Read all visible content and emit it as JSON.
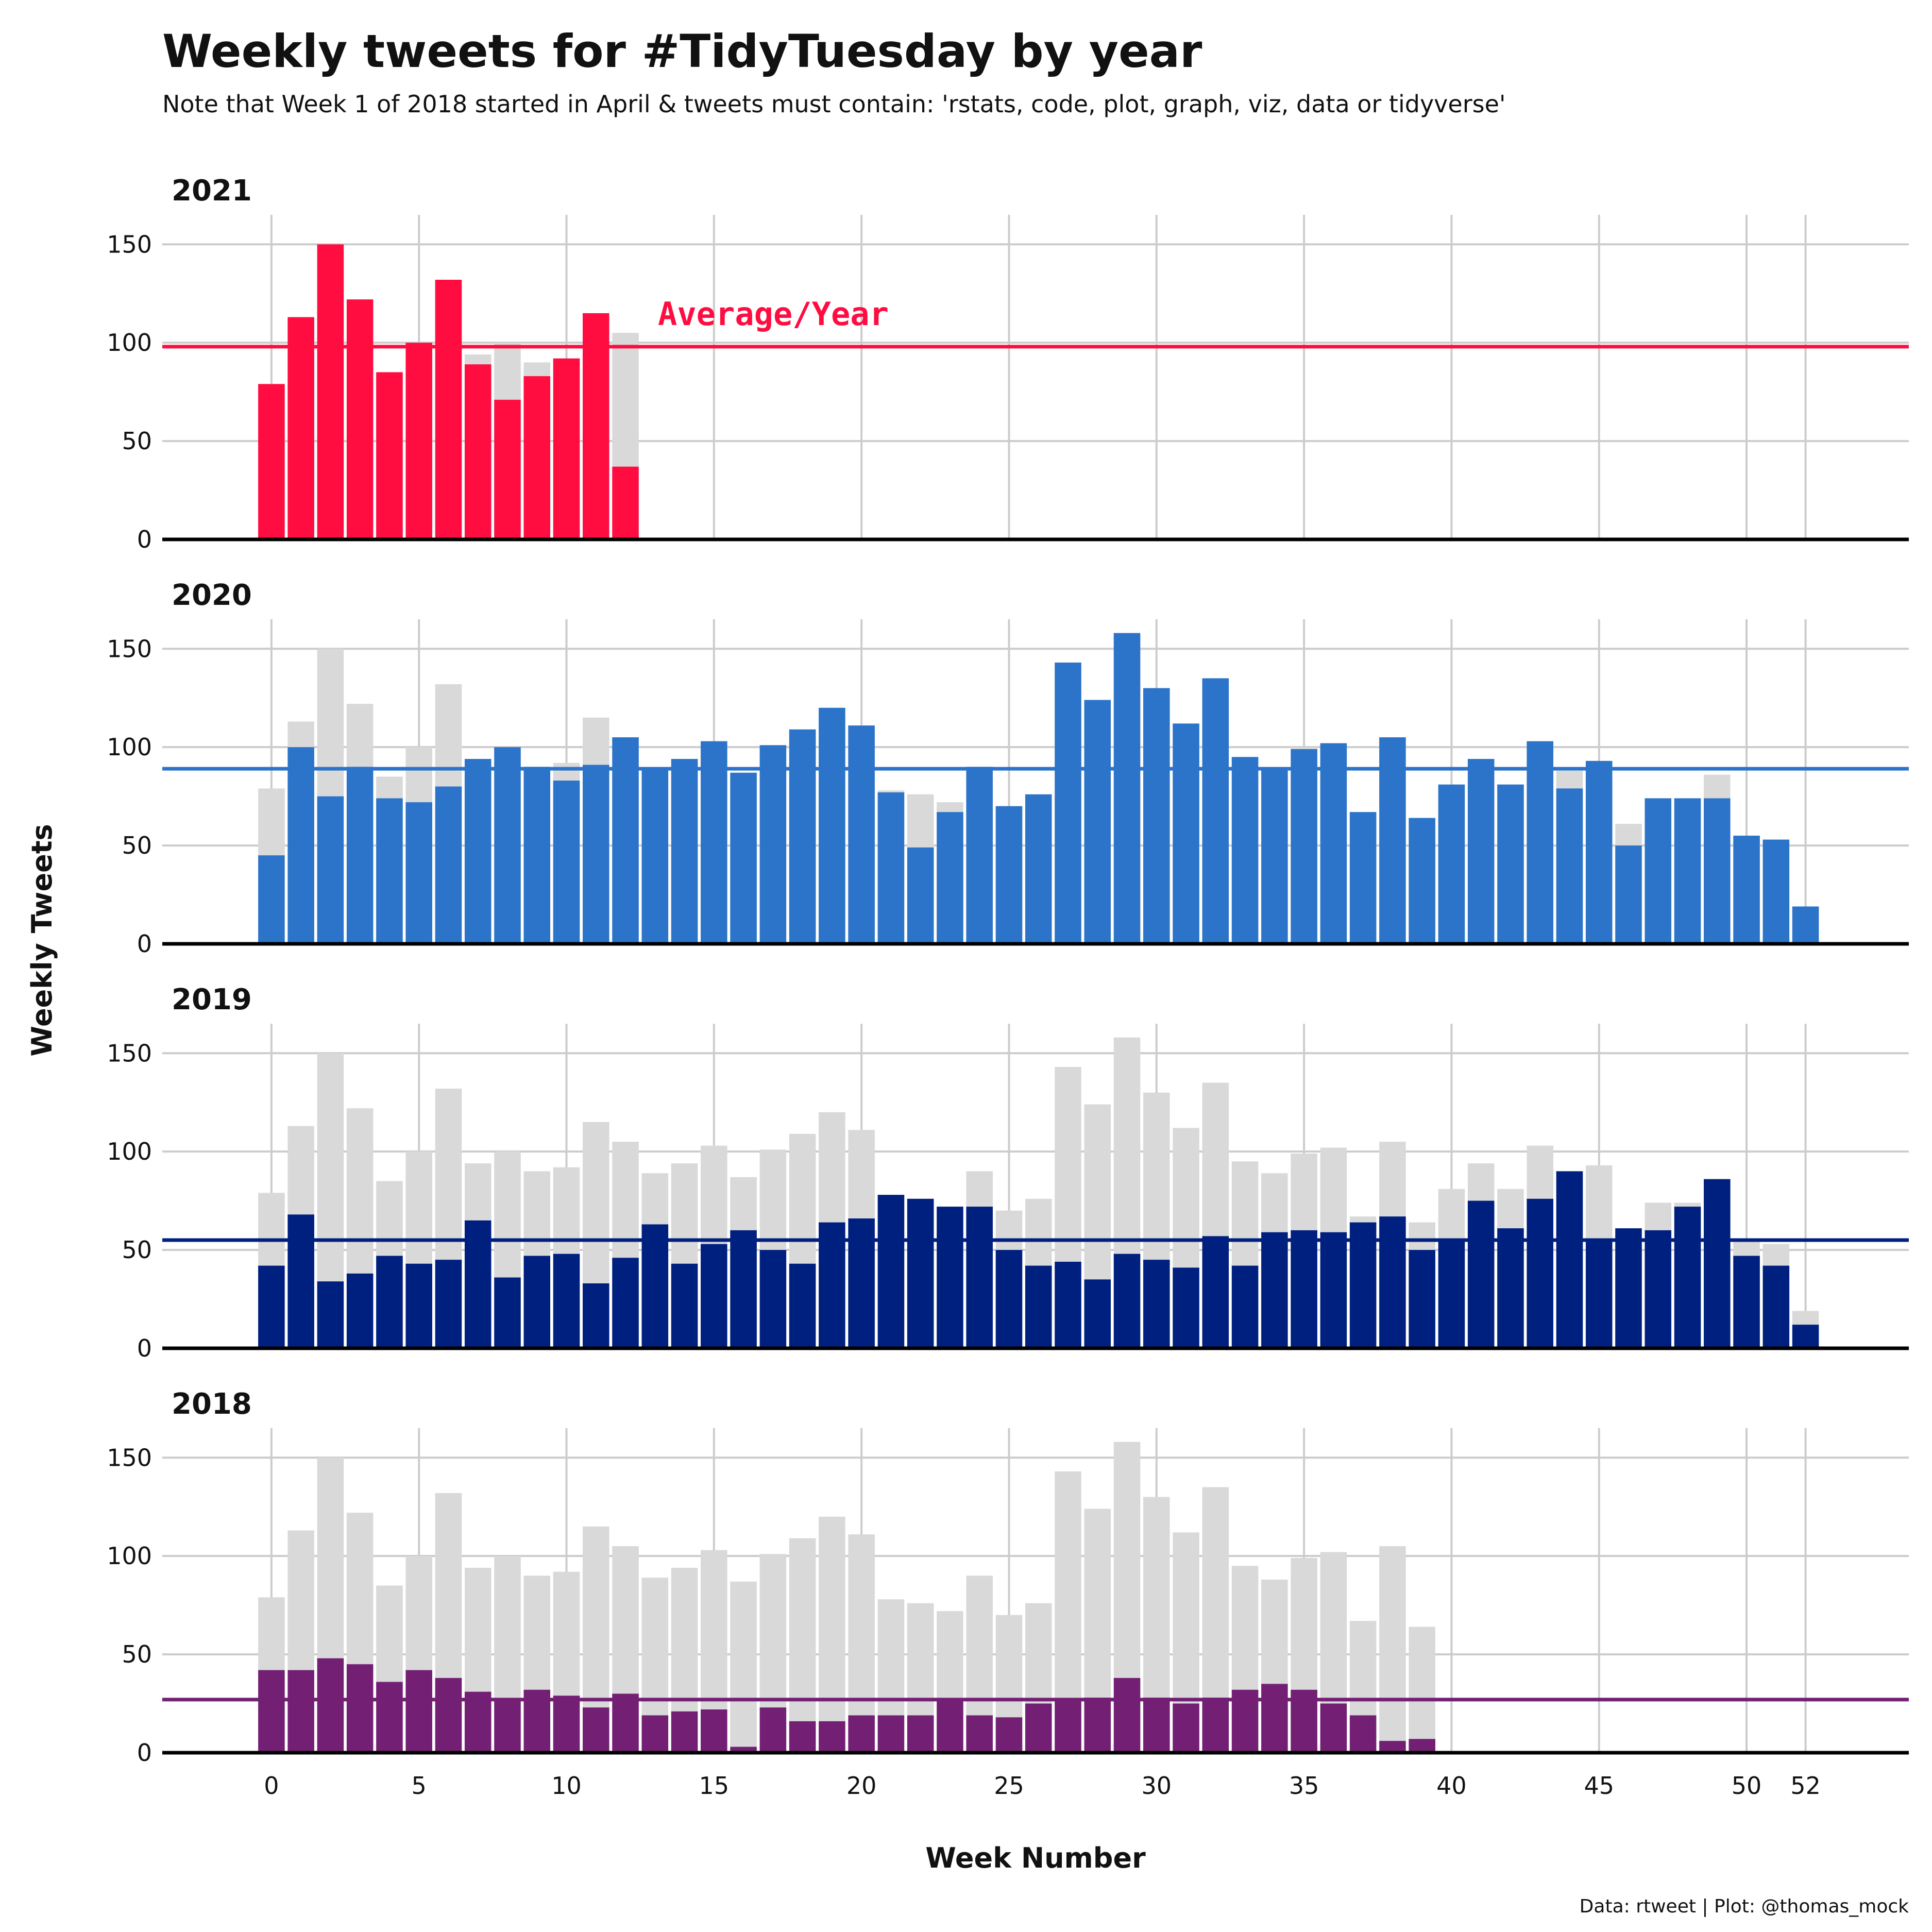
{
  "title": "Weekly tweets for #TidyTuesday by year",
  "subtitle": "Note that Week 1 of 2018 started in April & tweets must contain: 'rstats, code, plot, graph, viz, data or tidyverse'",
  "caption": "Data: rtweet | Plot: @thomas_mock",
  "annotation": {
    "text": "Average/Year",
    "color": "#ff0d41"
  },
  "chart_data": {
    "type": "bar",
    "xlabel": "Week Number",
    "ylabel": "Weekly Tweets",
    "x_ticks": [
      0,
      5,
      10,
      15,
      20,
      25,
      30,
      35,
      40,
      45,
      50,
      52
    ],
    "y_ticks": [
      0,
      50,
      100,
      150
    ],
    "ylim": [
      0,
      165
    ],
    "xlim": [
      -3.7,
      55.5
    ],
    "grid": true,
    "background_bar_color": "#d9d9d9",
    "panels": [
      {
        "name": "2021",
        "color": "#ff0d41",
        "average": 98,
        "values": [
          79,
          113,
          150,
          122,
          85,
          100,
          132,
          89,
          71,
          83,
          92,
          115,
          37
        ],
        "background_values": [
          79,
          113,
          150,
          122,
          85,
          100,
          132,
          94,
          100,
          90,
          92,
          115,
          105
        ]
      },
      {
        "name": "2020",
        "color": "#2c74c9",
        "average": 89,
        "values": [
          45,
          100,
          75,
          90,
          74,
          72,
          80,
          94,
          100,
          90,
          83,
          91,
          105,
          89,
          94,
          103,
          87,
          101,
          109,
          120,
          111,
          77,
          49,
          67,
          90,
          70,
          76,
          143,
          124,
          158,
          130,
          112,
          135,
          95,
          89,
          99,
          102,
          67,
          105,
          64,
          81,
          94,
          81,
          103,
          79,
          93,
          50,
          74,
          74,
          74,
          55,
          53,
          19
        ],
        "background_values": [
          79,
          113,
          150,
          122,
          85,
          100,
          132,
          94,
          100,
          90,
          92,
          115,
          105,
          89,
          94,
          103,
          87,
          101,
          109,
          120,
          111,
          78,
          76,
          72,
          90,
          70,
          76,
          143,
          124,
          158,
          130,
          112,
          135,
          95,
          89,
          100,
          102,
          67,
          105,
          64,
          81,
          94,
          81,
          103,
          88,
          93,
          61,
          74,
          74,
          86,
          55,
          53,
          19
        ]
      },
      {
        "name": "2019",
        "color": "#002080",
        "average": 55,
        "values": [
          42,
          68,
          34,
          38,
          47,
          43,
          45,
          65,
          36,
          47,
          48,
          33,
          46,
          63,
          43,
          53,
          60,
          50,
          43,
          64,
          66,
          78,
          76,
          72,
          72,
          50,
          42,
          44,
          35,
          48,
          45,
          41,
          57,
          42,
          59,
          60,
          59,
          64,
          67,
          50,
          55,
          75,
          61,
          76,
          90,
          55,
          61,
          60,
          72,
          86,
          47,
          42,
          12
        ],
        "background_values": [
          79,
          113,
          150,
          122,
          85,
          100,
          132,
          94,
          100,
          90,
          92,
          115,
          105,
          89,
          94,
          103,
          87,
          101,
          109,
          120,
          111,
          78,
          76,
          72,
          90,
          70,
          76,
          143,
          124,
          158,
          130,
          112,
          135,
          95,
          89,
          99,
          102,
          67,
          105,
          64,
          81,
          94,
          81,
          103,
          90,
          93,
          61,
          74,
          74,
          86,
          55,
          53,
          19
        ]
      },
      {
        "name": "2018",
        "color": "#732074",
        "average": 27,
        "values": [
          42,
          42,
          48,
          45,
          36,
          42,
          38,
          31,
          27,
          32,
          29,
          23,
          30,
          19,
          21,
          22,
          3,
          23,
          16,
          16,
          19,
          19,
          19,
          27,
          19,
          18,
          25,
          27,
          28,
          38,
          28,
          25,
          28,
          32,
          35,
          32,
          25,
          19,
          6,
          7
        ],
        "background_values": [
          79,
          113,
          150,
          122,
          85,
          100,
          132,
          94,
          100,
          90,
          92,
          115,
          105,
          89,
          94,
          103,
          87,
          101,
          109,
          120,
          111,
          78,
          76,
          72,
          90,
          70,
          76,
          143,
          124,
          158,
          130,
          112,
          135,
          95,
          88,
          99,
          102,
          67,
          105,
          64
        ]
      }
    ]
  }
}
